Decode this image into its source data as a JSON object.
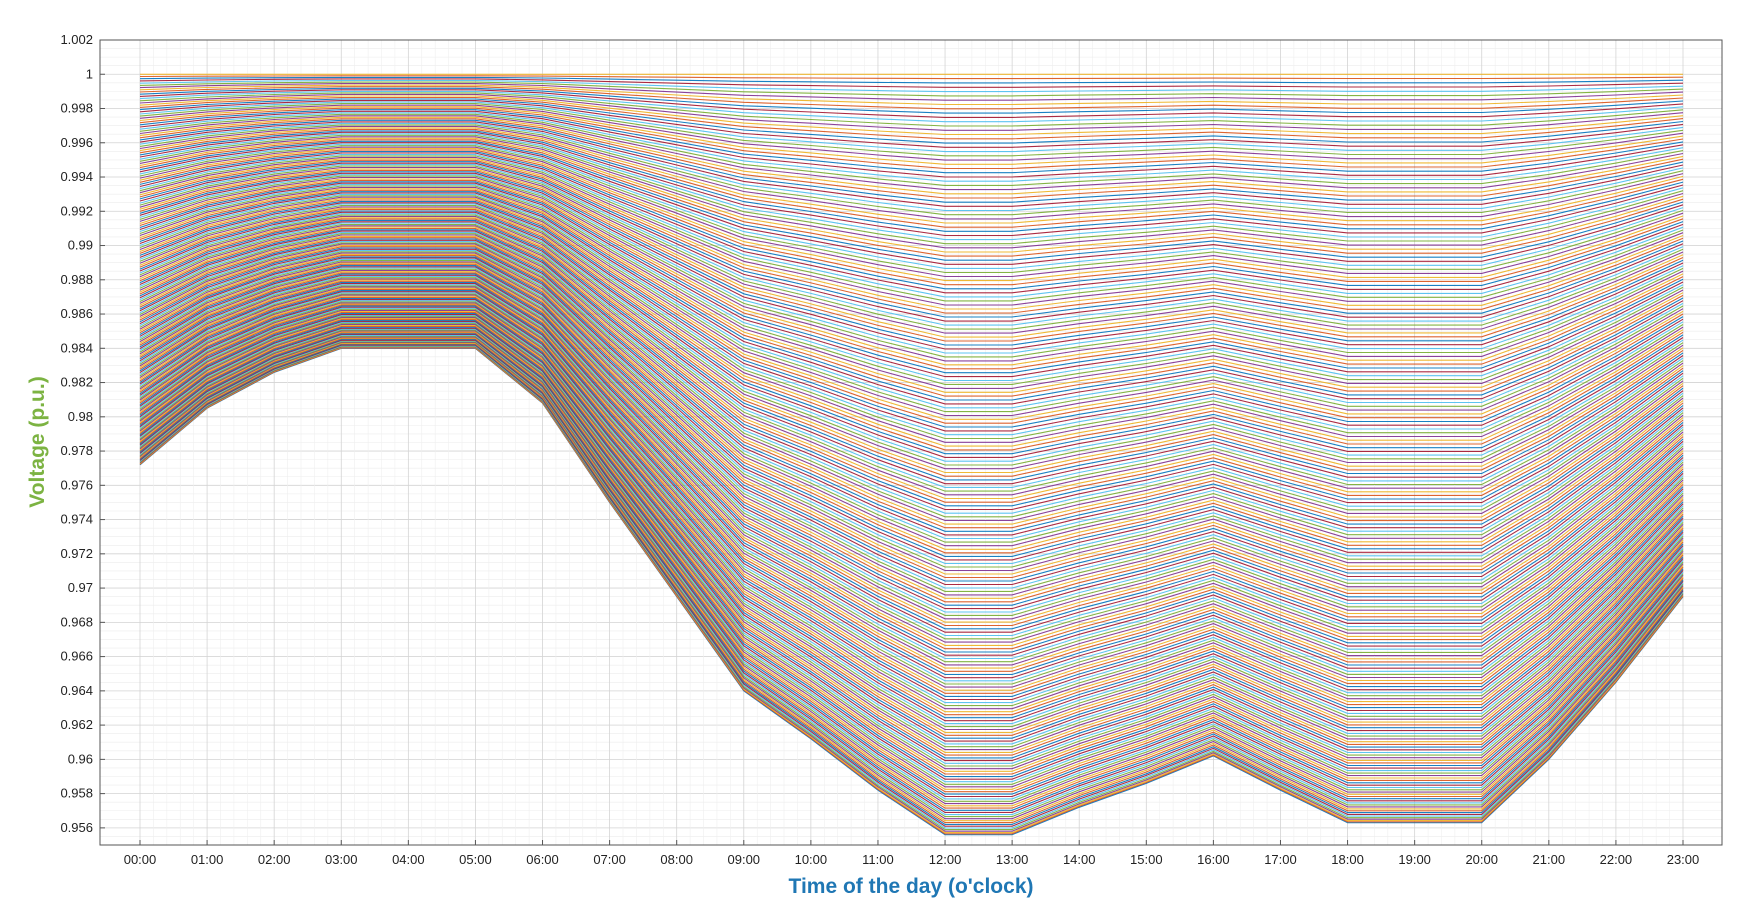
{
  "chart_data": {
    "type": "line",
    "title": "",
    "xlabel": "Time of the day (o'clock)",
    "ylabel": "Voltage (p.u.)",
    "xlabel_color": "#1f77b4",
    "ylabel_color": "#7cb342",
    "categories": [
      "00:00",
      "01:00",
      "02:00",
      "03:00",
      "04:00",
      "05:00",
      "06:00",
      "07:00",
      "08:00",
      "09:00",
      "10:00",
      "11:00",
      "12:00",
      "13:00",
      "14:00",
      "15:00",
      "16:00",
      "17:00",
      "18:00",
      "19:00",
      "20:00",
      "21:00",
      "22:00",
      "23:00"
    ],
    "ylim": [
      0.955,
      1.002
    ],
    "yticks": [
      "0.956",
      "0.958",
      "0.96",
      "0.962",
      "0.964",
      "0.966",
      "0.968",
      "0.97",
      "0.972",
      "0.974",
      "0.976",
      "0.978",
      "0.98",
      "0.982",
      "0.984",
      "0.986",
      "0.988",
      "0.99",
      "0.992",
      "0.994",
      "0.996",
      "0.998",
      "1",
      "1.002"
    ],
    "grid": true,
    "minor_grid": true,
    "legend": "none",
    "envelope": {
      "top": [
        1.0,
        1.0,
        1.0,
        1.0,
        1.0,
        1.0,
        1.0,
        1.0,
        1.0,
        1.0,
        1.0,
        1.0,
        1.0,
        1.0,
        1.0,
        1.0,
        1.0,
        1.0,
        1.0,
        1.0,
        1.0,
        1.0,
        1.0,
        1.0
      ],
      "bottom": [
        0.9772,
        0.9805,
        0.9826,
        0.984,
        0.984,
        0.984,
        0.9808,
        0.975,
        0.9695,
        0.964,
        0.9612,
        0.9582,
        0.9556,
        0.9556,
        0.9572,
        0.9586,
        0.9602,
        0.9582,
        0.9563,
        0.9563,
        0.9563,
        0.96,
        0.9645,
        0.9695
      ]
    },
    "series_count": 220,
    "series_note_colors": [
      "#0072bd",
      "#d95319",
      "#edb120",
      "#7e2f8e",
      "#77ac30",
      "#4dbeee",
      "#a2142f"
    ]
  }
}
